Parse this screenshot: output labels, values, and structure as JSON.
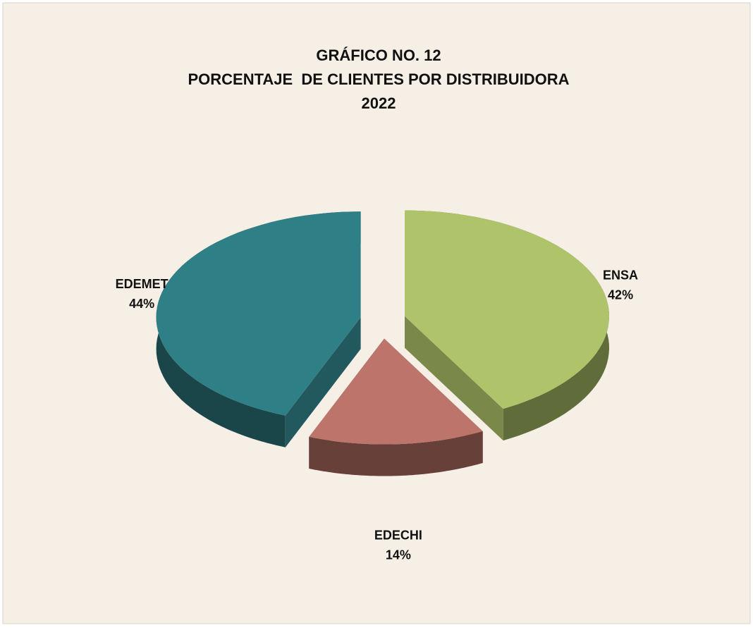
{
  "chart_data": {
    "type": "pie3d",
    "title": [
      "GRÁFICO NO. 12",
      "PORCENTAJE  DE CLIENTES POR DISTRIBUIDORA",
      "2022"
    ],
    "categories": [
      "ENSA",
      "EDECHI",
      "EDEMET"
    ],
    "values": [
      42,
      14,
      44
    ],
    "value_labels": [
      "42%",
      "14%",
      "44%"
    ],
    "colors": [
      "#afc46a",
      "#bd746a",
      "#2f7f86"
    ]
  }
}
